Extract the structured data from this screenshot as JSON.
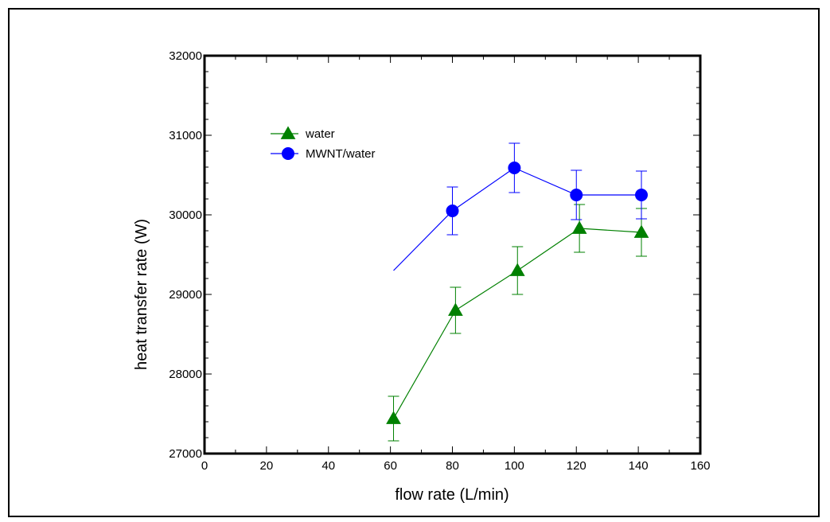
{
  "chart_data": {
    "type": "line",
    "title": "",
    "xlabel": "flow rate (L/min)",
    "ylabel": "heat transfer rate (W)",
    "xlim": [
      0,
      160
    ],
    "ylim": [
      27000,
      32000
    ],
    "x_ticks": [
      0,
      20,
      40,
      60,
      80,
      100,
      120,
      140,
      160
    ],
    "y_ticks": [
      27000,
      28000,
      29000,
      30000,
      31000,
      32000
    ],
    "x_tick_labels": [
      "0",
      "20",
      "40",
      "60",
      "80",
      "100",
      "120",
      "140",
      "160"
    ],
    "y_tick_labels": [
      "27000",
      "28000",
      "29000",
      "30000",
      "31000",
      "32000"
    ],
    "legend_position": "upper-left",
    "grid": false,
    "series": [
      {
        "name": "water",
        "color": "#008000",
        "marker": "triangle",
        "points": [
          {
            "x": 61,
            "y": 27440,
            "err": 280
          },
          {
            "x": 81,
            "y": 28800,
            "err": 290
          },
          {
            "x": 101,
            "y": 29300,
            "err": 300
          },
          {
            "x": 121,
            "y": 29830,
            "err": 300
          },
          {
            "x": 141,
            "y": 29780,
            "err": 300
          }
        ]
      },
      {
        "name": "MWNT/water",
        "color": "#0000ff",
        "marker": "circle",
        "line_start": {
          "x": 61,
          "y": 29300
        },
        "points": [
          {
            "x": 80,
            "y": 30050,
            "err": 300
          },
          {
            "x": 100,
            "y": 30590,
            "err": 310
          },
          {
            "x": 120,
            "y": 30250,
            "err": 310
          },
          {
            "x": 141,
            "y": 30250,
            "err": 300
          }
        ]
      }
    ]
  }
}
